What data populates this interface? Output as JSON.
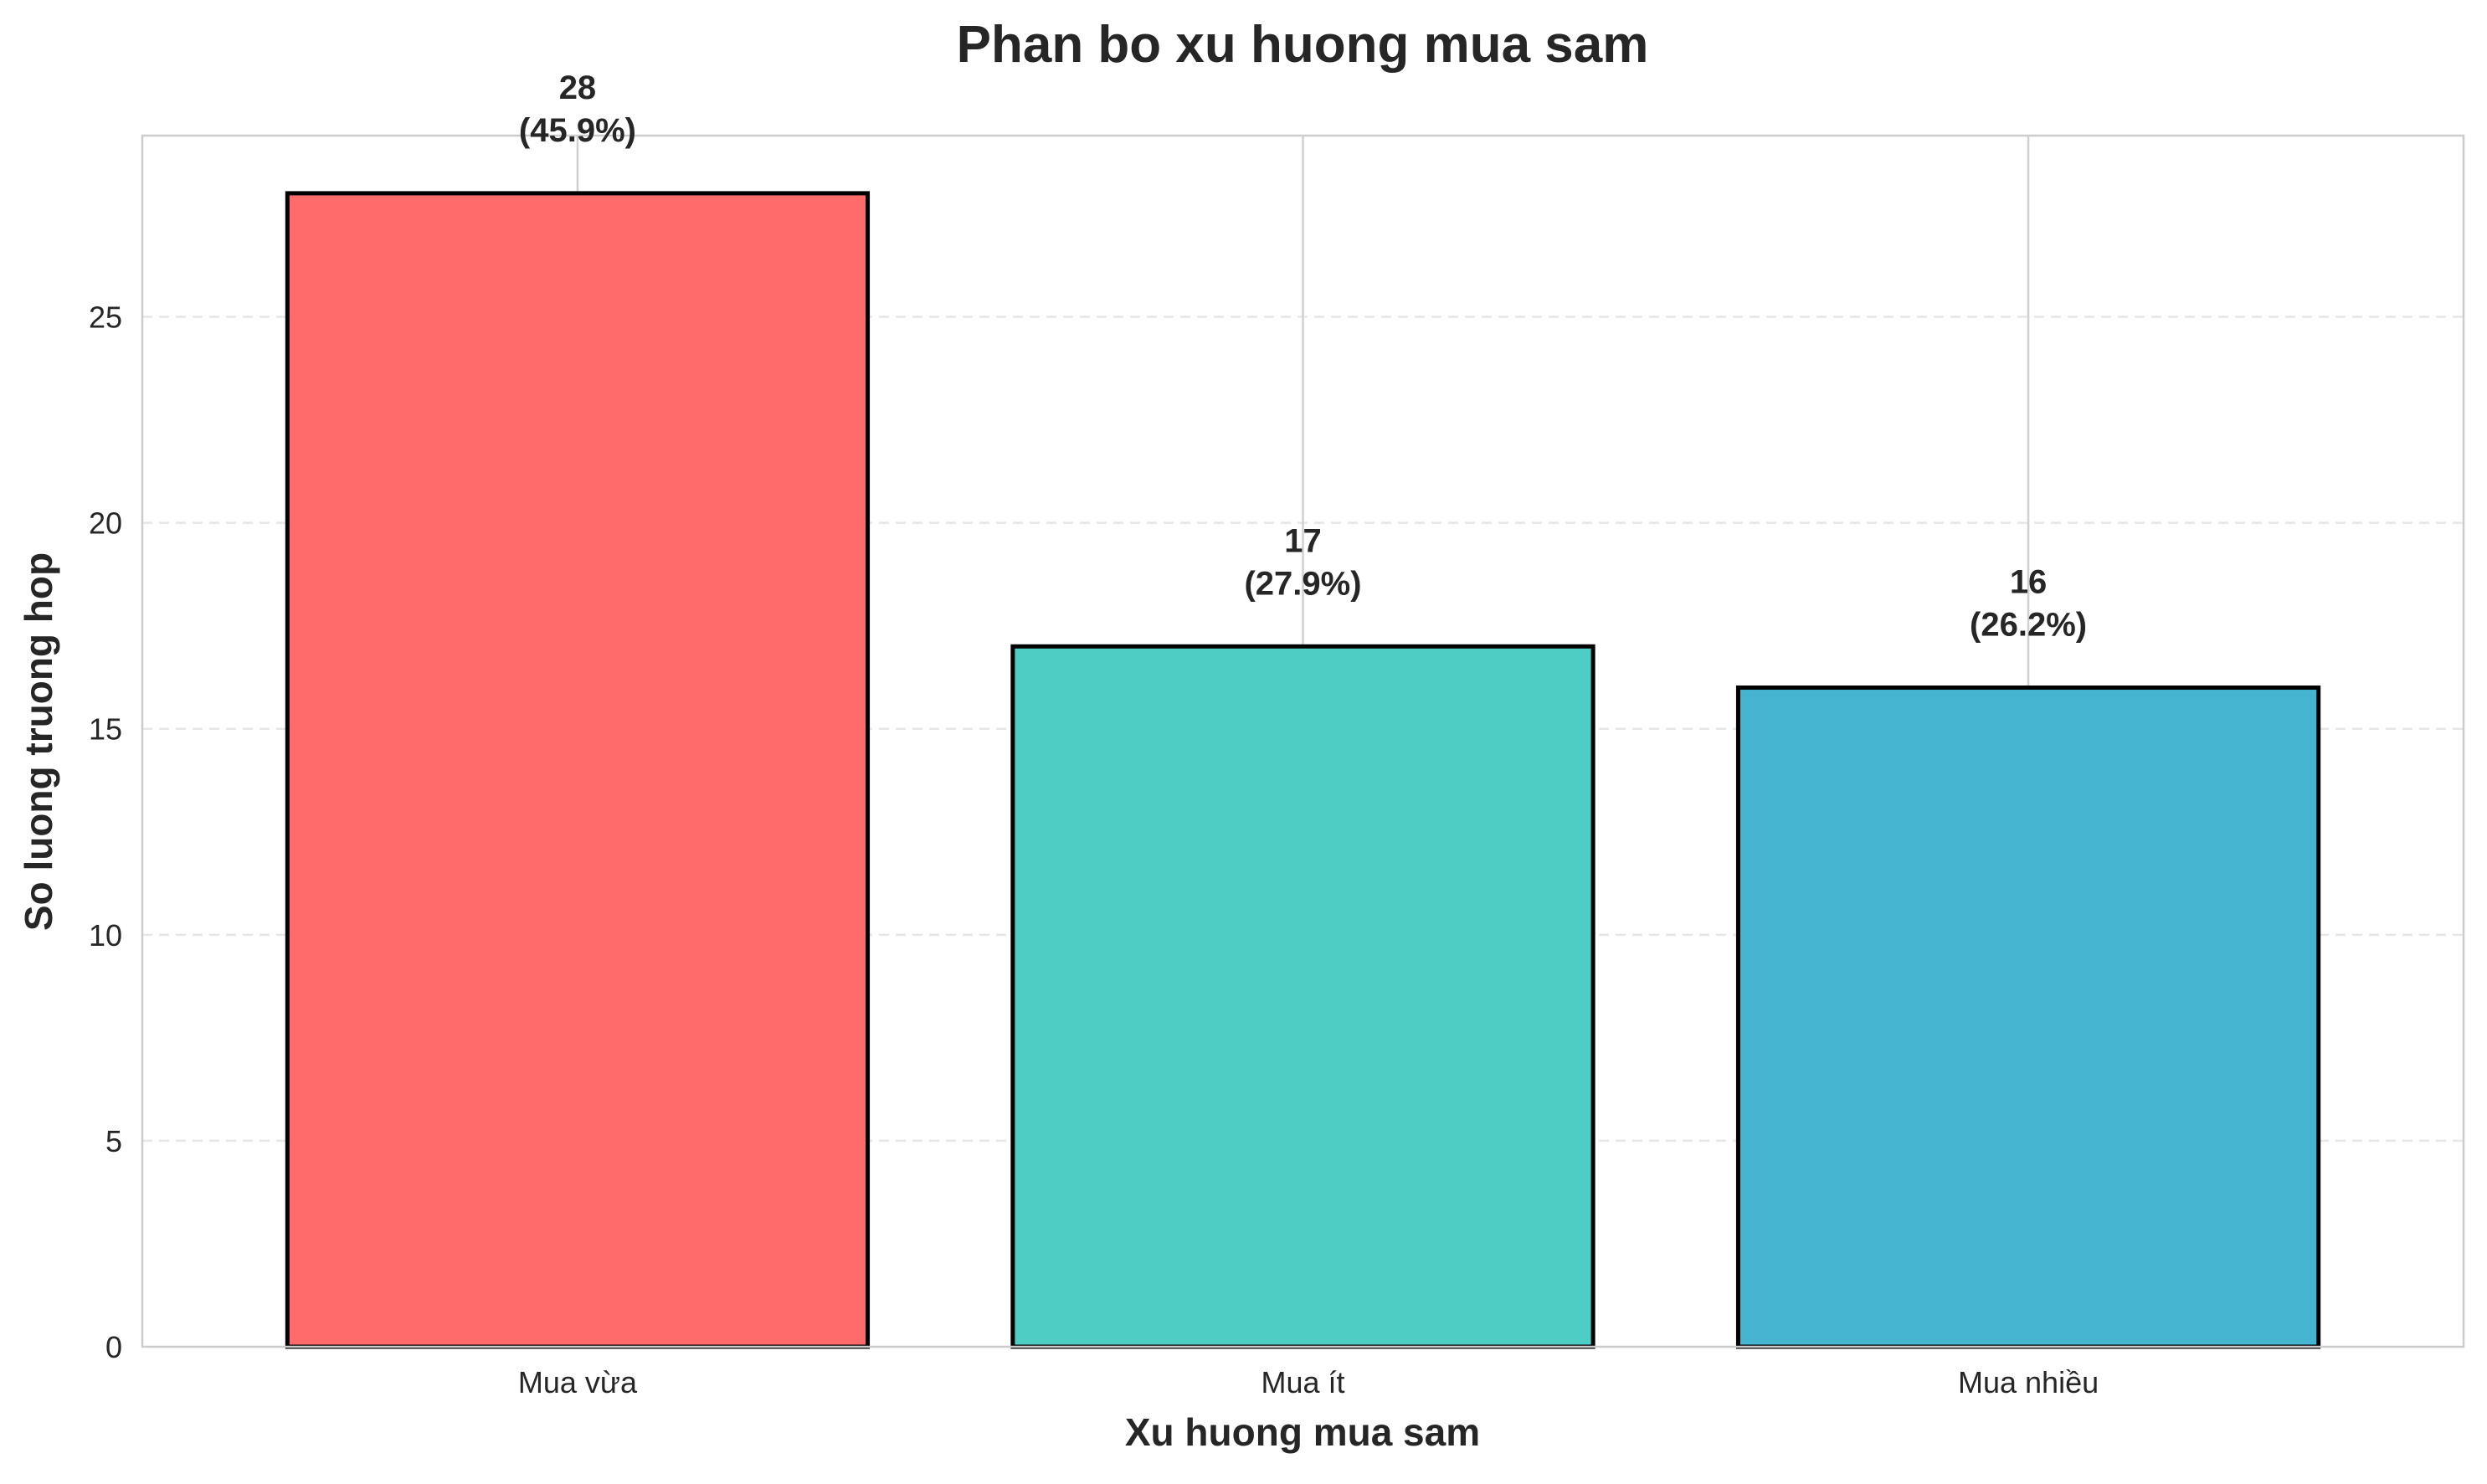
{
  "chart_data": {
    "type": "bar",
    "title": "Phan bo xu huong mua sam",
    "xlabel": "Xu huong mua sam",
    "ylabel": "So luong truong hop",
    "categories": [
      "Mua vừa",
      "Mua ít",
      "Mua nhiều"
    ],
    "values": [
      28,
      17,
      16
    ],
    "value_labels": [
      "28",
      "17",
      "16"
    ],
    "percent_labels": [
      "(45.9%)",
      "(27.9%)",
      "(26.2%)"
    ],
    "colors": [
      "#FF6B6B",
      "#4ECDC4",
      "#45B4D1"
    ],
    "edge_color": "#000000",
    "ylim": [
      0,
      29.4
    ],
    "yticks": [
      0,
      5,
      10,
      15,
      20,
      25
    ],
    "ytick_labels": [
      "0",
      "5",
      "10",
      "15",
      "20",
      "25"
    ],
    "grid": true,
    "grid_style": "horizontal dashed, vertical solid at categories",
    "legend": "none"
  }
}
